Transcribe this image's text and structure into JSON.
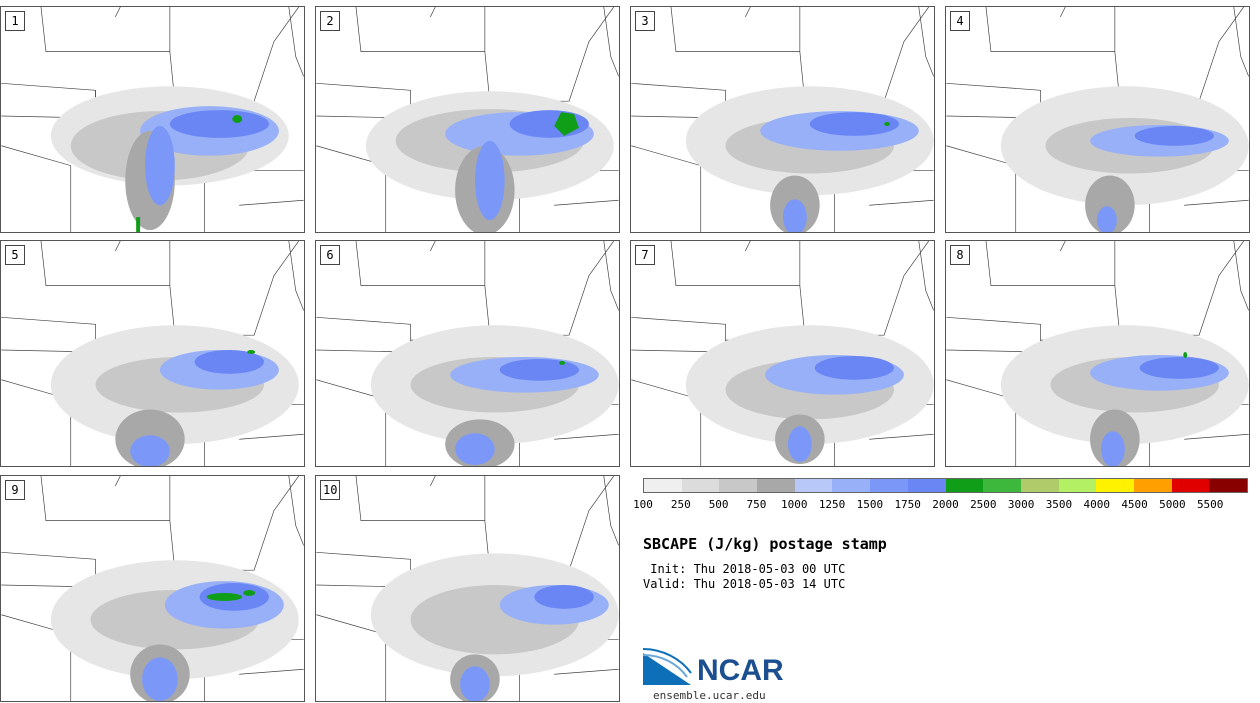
{
  "figure": {
    "title": "SBCAPE (J/kg) postage stamp",
    "init": " Init: Thu 2018-05-03 00 UTC",
    "valid": "Valid: Thu 2018-05-03 14 UTC"
  },
  "members": [
    {
      "label": "1"
    },
    {
      "label": "2"
    },
    {
      "label": "3"
    },
    {
      "label": "4"
    },
    {
      "label": "5"
    },
    {
      "label": "6"
    },
    {
      "label": "7"
    },
    {
      "label": "8"
    },
    {
      "label": "9"
    },
    {
      "label": "10"
    }
  ],
  "colorbar": {
    "ticks": [
      "100",
      "250",
      "500",
      "750",
      "1000",
      "1250",
      "1500",
      "1750",
      "2000",
      "2500",
      "3000",
      "3500",
      "4000",
      "4500",
      "5000",
      "5500"
    ],
    "colors": [
      "#efefef",
      "#dcdcdc",
      "#c8c8c8",
      "#a8a8a8",
      "#b8c8f8",
      "#98b0f8",
      "#7b98f8",
      "#6a86f4",
      "#109d18",
      "#3db83d",
      "#b0cc6a",
      "#b4f064",
      "#fff200",
      "#ffa000",
      "#e00000",
      "#880000"
    ]
  },
  "logo": {
    "name": "NCAR",
    "url": "ensemble.ucar.edu"
  }
}
